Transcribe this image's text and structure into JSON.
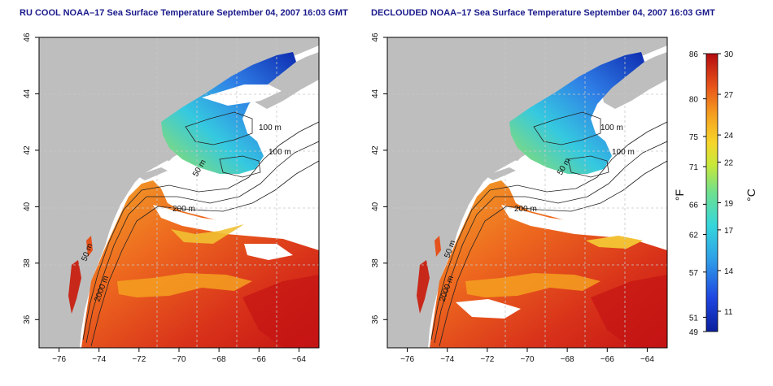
{
  "panels": [
    {
      "title": "RU COOL NOAA–17 Sea Surface Temperature September 04, 2007 16:03 GMT",
      "depth_labels": [
        "100 m",
        "100 m",
        "50 m",
        "200 m",
        "50 m",
        "2000 m"
      ]
    },
    {
      "title": "DECLOUDED NOAA–17 Sea Surface Temperature September 04, 2007 16:03 GMT",
      "depth_labels": [
        "100 m",
        "100 m",
        "50 m",
        "200 m",
        "50 m",
        "2000 m"
      ]
    }
  ],
  "axes": {
    "x_ticks": [
      "−76",
      "−74",
      "−72",
      "−70",
      "−68",
      "−66",
      "−64"
    ],
    "y_ticks": [
      "36",
      "38",
      "40",
      "42",
      "44",
      "46"
    ],
    "x_range": [
      -77,
      -63
    ],
    "y_range": [
      35,
      46
    ]
  },
  "colorbar": {
    "fahrenheit_label": "°F",
    "celsius_label": "°C",
    "fahrenheit_ticks": [
      "86",
      "80",
      "75",
      "71",
      "66",
      "62",
      "57",
      "51",
      "49"
    ],
    "celsius_ticks": [
      "30",
      "27",
      "24",
      "22",
      "19",
      "17",
      "14",
      "11"
    ]
  },
  "colors": {
    "land": "#bebebe",
    "nodata": "#ffffff",
    "cold": "#0a1f9c",
    "warm": "#c41010",
    "title": "#1a1a8c"
  }
}
